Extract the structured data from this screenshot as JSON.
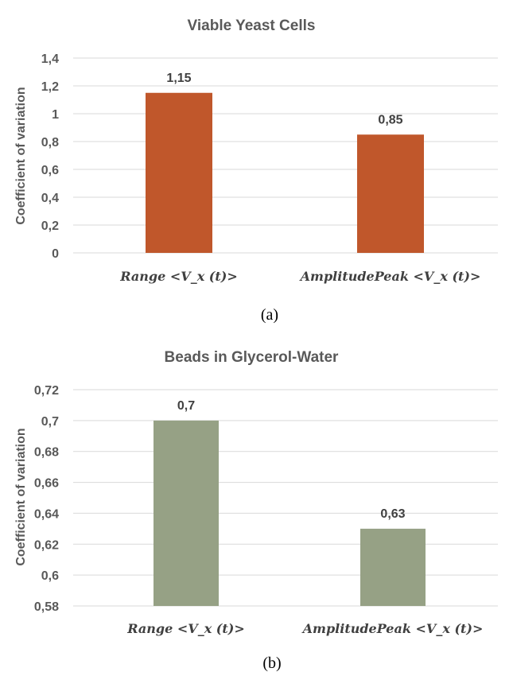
{
  "chart_data": [
    {
      "type": "bar",
      "title": "Viable Yeast Cells",
      "ylabel": "Coefficient of variation",
      "xlabel": "",
      "categories": [
        "Range <V_x (t)>",
        "AmplitudePeak <V_x (t)>"
      ],
      "values": [
        1.15,
        0.85
      ],
      "value_labels": [
        "1,15",
        "0,85"
      ],
      "ylim": [
        0,
        1.4
      ],
      "yticks": [
        "0",
        "0,2",
        "0,4",
        "0,6",
        "0,8",
        "1",
        "1,2",
        "1,4"
      ],
      "ytick_values": [
        0,
        0.2,
        0.4,
        0.6,
        0.8,
        1.0,
        1.2,
        1.4
      ],
      "bar_color": "#c0572b",
      "grid": true,
      "caption": "(a)"
    },
    {
      "type": "bar",
      "title": "Beads in Glycerol-Water",
      "ylabel": "Coefficient of variation",
      "xlabel": "",
      "categories": [
        "Range <V_x (t)>",
        "AmplitudePeak <V_x (t)>"
      ],
      "values": [
        0.7,
        0.63
      ],
      "value_labels": [
        "0,7",
        "0,63"
      ],
      "ylim": [
        0.58,
        0.72
      ],
      "yticks": [
        "0,58",
        "0,6",
        "0,62",
        "0,64",
        "0,66",
        "0,68",
        "0,7",
        "0,72"
      ],
      "ytick_values": [
        0.58,
        0.6,
        0.62,
        0.64,
        0.66,
        0.68,
        0.7,
        0.72
      ],
      "bar_color": "#96a185",
      "grid": true,
      "caption": "(b)"
    }
  ]
}
